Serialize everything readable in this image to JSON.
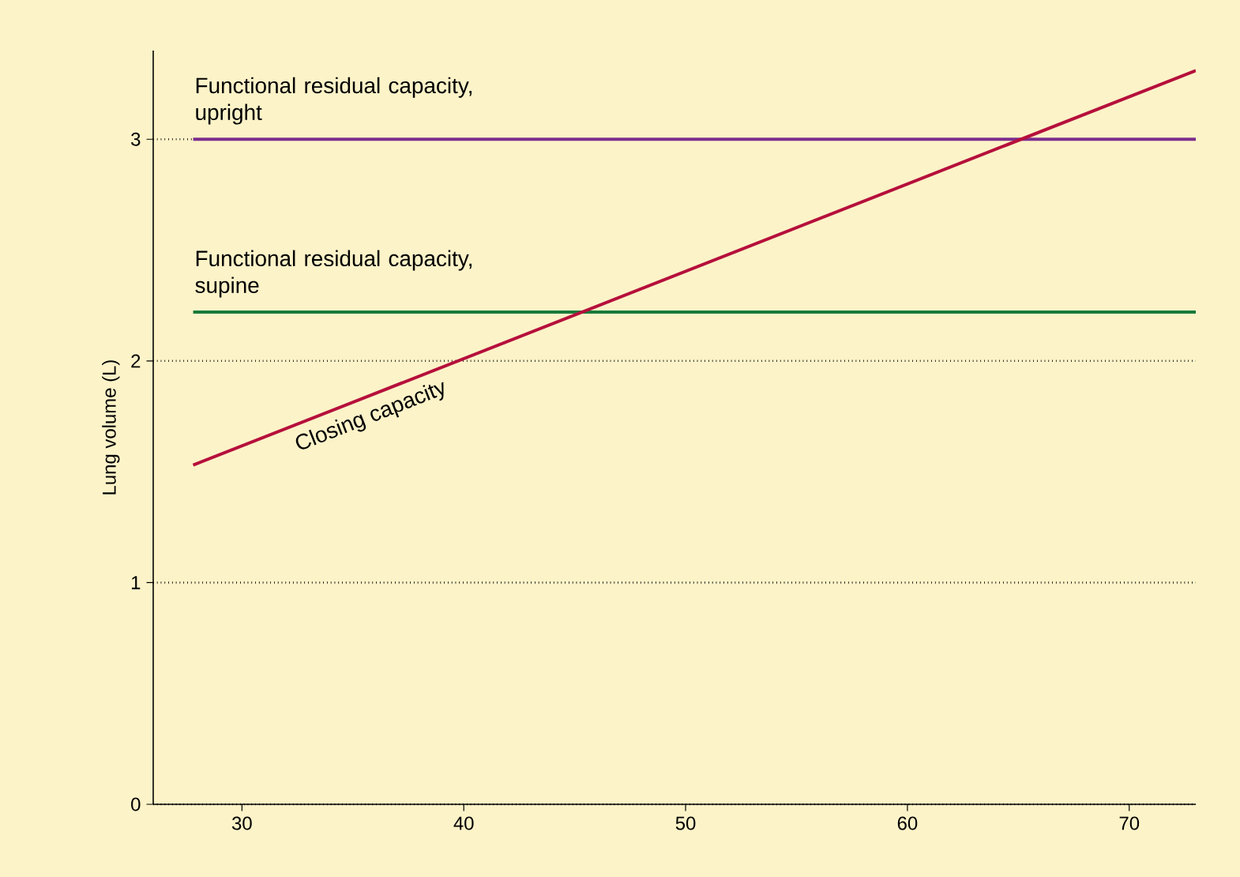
{
  "chart_data": {
    "type": "line",
    "ylabel": "Lung volume (L)",
    "xlim": [
      26,
      73
    ],
    "ylim": [
      0,
      3.4
    ],
    "xticks": [
      30,
      40,
      50,
      60,
      70
    ],
    "yticks": [
      0,
      1,
      2,
      3
    ],
    "grid": "y",
    "legend": false,
    "line_style": "solid",
    "marker": "none",
    "x": [
      27.8,
      73
    ],
    "series": [
      {
        "name": "Functional residual capacity, upright",
        "color": "#7b2d8e",
        "values": [
          3,
          3
        ]
      },
      {
        "name": "Functional residual capacity, supine",
        "color": "#1a7a3a",
        "values": [
          2.22,
          2.22
        ]
      },
      {
        "name": "Closing capacity",
        "color": "#b5103c",
        "values": [
          1.53,
          3.31
        ]
      }
    ]
  }
}
